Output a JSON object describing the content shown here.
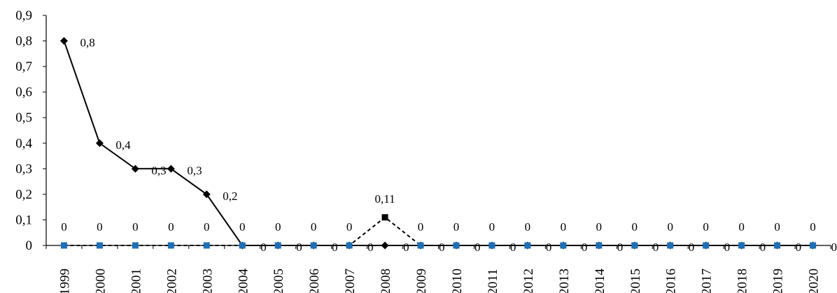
{
  "chart_data": {
    "type": "line",
    "title": "",
    "xlabel": "",
    "ylabel": "",
    "x": [
      "1999",
      "2000",
      "2001",
      "2002",
      "2003",
      "2004",
      "2005",
      "2006",
      "2007",
      "2008",
      "2009",
      "2010",
      "2011",
      "2012",
      "2013",
      "2014",
      "2015",
      "2016",
      "2017",
      "2018",
      "2019",
      "2020"
    ],
    "ylim": [
      0,
      0.9
    ],
    "yticks": [
      "0",
      "0,1",
      "0,2",
      "0,3",
      "0,4",
      "0,5",
      "0,6",
      "0,7",
      "0,8",
      "0,9"
    ],
    "grid": false,
    "legend": "none",
    "series": [
      {
        "style": "solid",
        "marker": "diamond",
        "color": "#000000",
        "values": [
          0.8,
          0.4,
          0.3,
          0.3,
          0.2,
          0,
          0,
          0,
          0,
          0,
          0,
          0,
          0,
          0,
          0,
          0,
          0,
          0,
          0,
          0,
          0,
          0
        ],
        "labels": [
          "0,8",
          "0,4",
          "0,3",
          "0,3",
          "0,2",
          "0",
          "0",
          "0",
          "0",
          "0",
          "0",
          "0",
          "0",
          "0",
          "0",
          "0",
          "0",
          "0",
          "0",
          "0",
          "0",
          "0"
        ]
      },
      {
        "style": "dashed",
        "marker": "square",
        "color": "#000000",
        "marker_color": "#1f6fb5",
        "values": [
          0,
          0,
          0,
          0,
          0,
          0,
          0,
          0,
          0,
          0.11,
          0,
          0,
          0,
          0,
          0,
          0,
          0,
          0,
          0,
          0,
          0,
          0
        ],
        "labels": [
          "0",
          "0",
          "0",
          "0",
          "0",
          "0",
          "0",
          "0",
          "0",
          "0,11",
          "0",
          "0",
          "0",
          "0",
          "0",
          "0",
          "0",
          "0",
          "0",
          "0",
          "0",
          "0"
        ]
      }
    ]
  }
}
